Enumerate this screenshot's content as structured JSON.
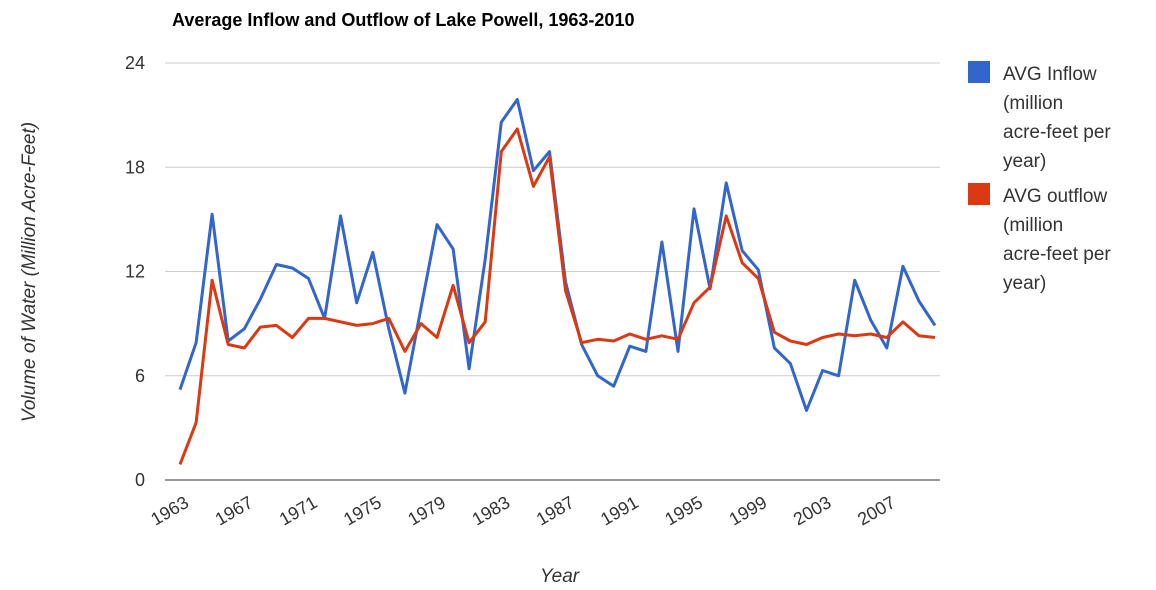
{
  "chart_data": {
    "type": "line",
    "title": "Average Inflow and Outflow of Lake Powell, 1963-2010",
    "xlabel": "Year",
    "ylabel": "Volume of Water (Million Acre-Feet)",
    "ylim": [
      0,
      24
    ],
    "y_ticks": [
      "0",
      "6",
      "12",
      "18",
      "24"
    ],
    "x_tick_labels": [
      "1963",
      "1967",
      "1971",
      "1975",
      "1979",
      "1983",
      "1987",
      "1991",
      "1995",
      "1999",
      "2003",
      "2007"
    ],
    "grid": true,
    "legend_position": "right",
    "x": [
      1963,
      1964,
      1965,
      1966,
      1967,
      1968,
      1969,
      1970,
      1971,
      1972,
      1973,
      1974,
      1975,
      1976,
      1977,
      1978,
      1979,
      1980,
      1981,
      1982,
      1983,
      1984,
      1985,
      1986,
      1987,
      1988,
      1989,
      1990,
      1991,
      1992,
      1993,
      1994,
      1995,
      1996,
      1997,
      1998,
      1999,
      2000,
      2001,
      2002,
      2003,
      2004,
      2005,
      2006,
      2007,
      2008,
      2009,
      2010
    ],
    "series": [
      {
        "name": "AVG Inflow (million acre-feet per year)",
        "color": "#3366cc",
        "values": [
          5.2,
          7.9,
          15.3,
          8.0,
          8.7,
          10.4,
          12.4,
          12.2,
          11.6,
          9.3,
          15.2,
          10.2,
          13.1,
          8.7,
          5.0,
          9.9,
          14.7,
          13.3,
          6.4,
          12.7,
          20.6,
          21.9,
          17.8,
          18.9,
          11.4,
          7.8,
          6.0,
          5.4,
          7.7,
          7.4,
          13.7,
          7.4,
          15.6,
          11.0,
          17.1,
          13.2,
          12.1,
          7.6,
          6.7,
          4.0,
          6.3,
          6.0,
          11.5,
          9.2,
          7.6,
          12.3,
          10.3,
          8.9
        ]
      },
      {
        "name": "AVG outflow (million acre-feet per year)",
        "color": "#dc3912",
        "values": [
          0.9,
          3.3,
          11.5,
          7.8,
          7.6,
          8.8,
          8.9,
          8.2,
          9.3,
          9.3,
          9.1,
          8.9,
          9.0,
          9.3,
          7.4,
          9.0,
          8.2,
          11.2,
          7.9,
          9.1,
          18.9,
          20.2,
          16.9,
          18.6,
          10.9,
          7.9,
          8.1,
          8.0,
          8.4,
          8.1,
          8.3,
          8.1,
          10.2,
          11.1,
          15.2,
          12.5,
          11.6,
          8.5,
          8.0,
          7.8,
          8.2,
          8.4,
          8.3,
          8.4,
          8.2,
          9.1,
          8.3,
          8.2
        ]
      }
    ]
  }
}
